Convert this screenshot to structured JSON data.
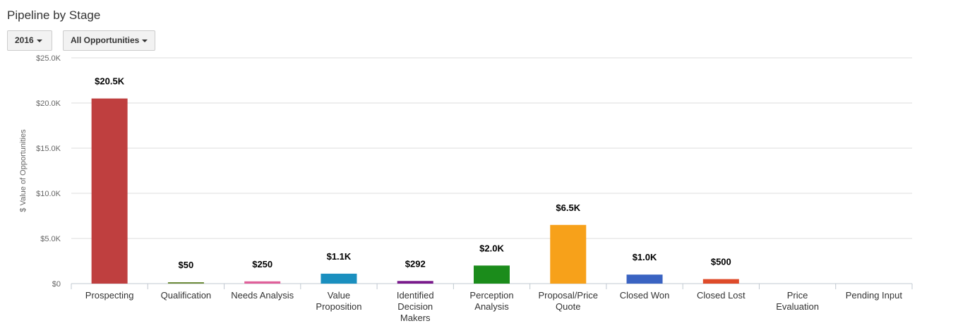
{
  "header": {
    "title": "Pipeline by Stage",
    "year_filter": "2016",
    "opportunity_filter": "All Opportunities"
  },
  "chart_data": {
    "type": "bar",
    "title": "Pipeline by Stage",
    "xlabel": "",
    "ylabel": "$ Value of Opportunities",
    "ylim": [
      0,
      25000
    ],
    "yticks": [
      0,
      5000,
      10000,
      15000,
      20000,
      25000
    ],
    "ytick_labels": [
      "$0",
      "$5.0K",
      "$10.0K",
      "$15.0K",
      "$20.0K",
      "$25.0K"
    ],
    "grid": true,
    "legend": "none",
    "categories": [
      "Prospecting",
      "Qualification",
      "Needs Analysis",
      "Value Proposition",
      "Identified Decision Makers",
      "Perception Analysis",
      "Proposal/Price Quote",
      "Closed Won",
      "Closed Lost",
      "Price Evaluation",
      "Pending Input"
    ],
    "category_lines": [
      [
        "Prospecting"
      ],
      [
        "Qualification"
      ],
      [
        "Needs Analysis"
      ],
      [
        "Value",
        "Proposition"
      ],
      [
        "Identified",
        "Decision",
        "Makers"
      ],
      [
        "Perception",
        "Analysis"
      ],
      [
        "Proposal/Price",
        "Quote"
      ],
      [
        "Closed Won"
      ],
      [
        "Closed Lost"
      ],
      [
        "Price",
        "Evaluation"
      ],
      [
        "Pending Input"
      ]
    ],
    "values": [
      20500,
      50,
      250,
      1100,
      292,
      2000,
      6500,
      1000,
      500,
      null,
      null
    ],
    "data_labels": [
      "$20.5K",
      "$50",
      "$250",
      "$1.1K",
      "$292",
      "$2.0K",
      "$6.5K",
      "$1.0K",
      "$500",
      null,
      null
    ],
    "colors": [
      "#bf3f3f",
      "#6d8b3a",
      "#e0609a",
      "#1a8fbf",
      "#7a1a8c",
      "#1b8c1b",
      "#f7a11a",
      "#3a63c2",
      "#de4b2a",
      "#999999",
      "#999999"
    ]
  }
}
